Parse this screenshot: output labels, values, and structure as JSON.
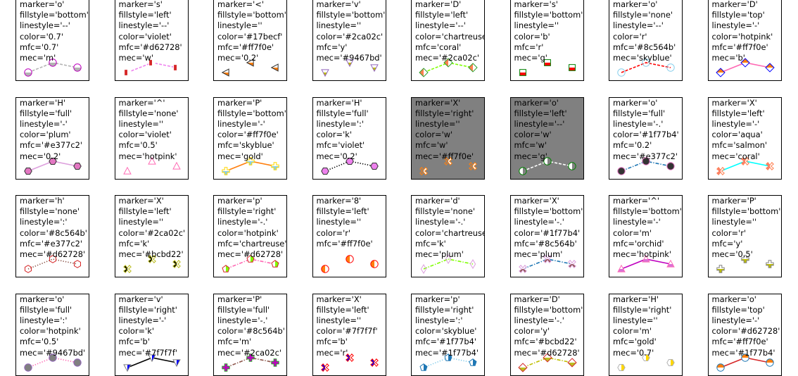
{
  "chart_data": [
    {
      "type": "line",
      "annotation": [
        "marker='o'",
        "fillstyle='bottom'",
        "linestyle='--'",
        "color='0.7'",
        "mfc='0.7'",
        "mec='m'"
      ],
      "marker": "o",
      "fillstyle": "bottom",
      "linestyle": "--",
      "color": "#b3b3b3",
      "mfc": "#b3b3b3",
      "mec": "#bf00bf",
      "bg": "#ffffff",
      "x": [
        1,
        2,
        3
      ],
      "y": [
        1,
        2,
        1.5
      ]
    },
    {
      "type": "line",
      "annotation": [
        "marker='s'",
        "fillstyle='left'",
        "linestyle='--'",
        "color='violet'",
        "mfc='#d62728'",
        "mec='w'"
      ],
      "marker": "s",
      "fillstyle": "left",
      "linestyle": "--",
      "color": "#ee82ee",
      "mfc": "#d62728",
      "mec": "#ffffff",
      "bg": "#ffffff",
      "x": [
        1,
        2,
        3
      ],
      "y": [
        1,
        2,
        1.5
      ]
    },
    {
      "type": "line",
      "annotation": [
        "marker='<'",
        "fillstyle='bottom'",
        "linestyle=''",
        "color='#17becf'",
        "mfc='#ff7f0e'",
        "mec='0.2'"
      ],
      "marker": "<",
      "fillstyle": "bottom",
      "linestyle": "",
      "color": "#17becf",
      "mfc": "#ff7f0e",
      "mec": "#333333",
      "bg": "#ffffff",
      "x": [
        1,
        2,
        3
      ],
      "y": [
        1,
        2,
        1.5
      ]
    },
    {
      "type": "line",
      "annotation": [
        "marker='v'",
        "fillstyle='bottom'",
        "linestyle=''",
        "color='#2ca02c'",
        "mfc='y'",
        "mec='#9467bd'"
      ],
      "marker": "v",
      "fillstyle": "bottom",
      "linestyle": "",
      "color": "#2ca02c",
      "mfc": "#bfbf00",
      "mec": "#9467bd",
      "bg": "#ffffff",
      "x": [
        1,
        2,
        3
      ],
      "y": [
        1,
        2,
        1.5
      ]
    },
    {
      "type": "line",
      "annotation": [
        "marker='D'",
        "fillstyle='left'",
        "linestyle='--'",
        "color='chartreuse'",
        "mfc='coral'",
        "mec='#2ca02c'"
      ],
      "marker": "D",
      "fillstyle": "left",
      "linestyle": "--",
      "color": "#7fff00",
      "mfc": "#ff7f50",
      "mec": "#2ca02c",
      "bg": "#ffffff",
      "x": [
        1,
        2,
        3
      ],
      "y": [
        1,
        2,
        1.5
      ]
    },
    {
      "type": "line",
      "annotation": [
        "marker='s'",
        "fillstyle='bottom'",
        "linestyle=''",
        "color='b'",
        "mfc='r'",
        "mec='g'"
      ],
      "marker": "s",
      "fillstyle": "bottom",
      "linestyle": "",
      "color": "#0000ff",
      "mfc": "#ff0000",
      "mec": "#008000",
      "bg": "#ffffff",
      "x": [
        1,
        2,
        3
      ],
      "y": [
        1,
        2,
        1.5
      ]
    },
    {
      "type": "line",
      "annotation": [
        "marker='o'",
        "fillstyle='none'",
        "linestyle='--'",
        "color='r'",
        "mfc='#8c564b'",
        "mec='skyblue'"
      ],
      "marker": "o",
      "fillstyle": "none",
      "linestyle": "--",
      "color": "#ff0000",
      "mfc": "#8c564b",
      "mec": "#87ceeb",
      "bg": "#ffffff",
      "x": [
        1,
        2,
        3
      ],
      "y": [
        1,
        2,
        1.5
      ]
    },
    {
      "type": "line",
      "annotation": [
        "marker='D'",
        "fillstyle='top'",
        "linestyle='-'",
        "color='hotpink'",
        "mfc='#ff7f0e'",
        "mec='b'"
      ],
      "marker": "D",
      "fillstyle": "top",
      "linestyle": "-",
      "color": "#ff69b4",
      "mfc": "#ff7f0e",
      "mec": "#0000ff",
      "bg": "#ffffff",
      "x": [
        1,
        2,
        3
      ],
      "y": [
        1,
        2,
        1.5
      ]
    },
    {
      "type": "line",
      "annotation": [
        "marker='H'",
        "fillstyle='full'",
        "linestyle='-'",
        "color='plum'",
        "mfc='#e377c2'",
        "mec='0.2'"
      ],
      "marker": "H",
      "fillstyle": "full",
      "linestyle": "-",
      "color": "#dda0dd",
      "mfc": "#e377c2",
      "mec": "#333333",
      "bg": "#ffffff",
      "x": [
        1,
        2,
        3
      ],
      "y": [
        1,
        2,
        1.5
      ]
    },
    {
      "type": "line",
      "annotation": [
        "marker='^'",
        "fillstyle='none'",
        "linestyle=''",
        "color='violet'",
        "mfc='0.5'",
        "mec='hotpink'"
      ],
      "marker": "^",
      "fillstyle": "none",
      "linestyle": "",
      "color": "#ee82ee",
      "mfc": "#808080",
      "mec": "#ff69b4",
      "bg": "#ffffff",
      "x": [
        1,
        2,
        3
      ],
      "y": [
        1,
        2,
        1.5
      ]
    },
    {
      "type": "line",
      "annotation": [
        "marker='P'",
        "fillstyle='bottom'",
        "linestyle='-'",
        "color='#ff7f0e'",
        "mfc='skyblue'",
        "mec='gold'"
      ],
      "marker": "P",
      "fillstyle": "bottom",
      "linestyle": "-",
      "color": "#ff7f0e",
      "mfc": "#87ceeb",
      "mec": "#ffd700",
      "bg": "#ffffff",
      "x": [
        1,
        2,
        3
      ],
      "y": [
        1,
        2,
        1.5
      ]
    },
    {
      "type": "line",
      "annotation": [
        "marker='H'",
        "fillstyle='full'",
        "linestyle=':'",
        "color='k'",
        "mfc='violet'",
        "mec='0.2'"
      ],
      "marker": "H",
      "fillstyle": "full",
      "linestyle": ":",
      "color": "#000000",
      "mfc": "#ee82ee",
      "mec": "#333333",
      "bg": "#ffffff",
      "x": [
        1,
        2,
        3
      ],
      "y": [
        1,
        2,
        1.5
      ]
    },
    {
      "type": "line",
      "annotation": [
        "marker='X'",
        "fillstyle='right'",
        "linestyle=''",
        "color='w'",
        "mfc='w'",
        "mec='#ff7f0e'"
      ],
      "marker": "X",
      "fillstyle": "right",
      "linestyle": "",
      "color": "#ffffff",
      "mfc": "#ffffff",
      "mec": "#ff7f0e",
      "bg": "#808080",
      "x": [
        1,
        2,
        3
      ],
      "y": [
        1,
        2,
        1.5
      ]
    },
    {
      "type": "line",
      "annotation": [
        "marker='o'",
        "fillstyle='left'",
        "linestyle='--'",
        "color='w'",
        "mfc='w'",
        "mec='g'"
      ],
      "marker": "o",
      "fillstyle": "left",
      "linestyle": "--",
      "color": "#ffffff",
      "mfc": "#ffffff",
      "mec": "#008000",
      "bg": "#808080",
      "x": [
        1,
        2,
        3
      ],
      "y": [
        1,
        2,
        1.5
      ]
    },
    {
      "type": "line",
      "annotation": [
        "marker='o'",
        "fillstyle='full'",
        "linestyle='-.'",
        "color='#1f77b4'",
        "mfc='0.2'",
        "mec='#e377c2'"
      ],
      "marker": "o",
      "fillstyle": "full",
      "linestyle": "-.",
      "color": "#1f77b4",
      "mfc": "#333333",
      "mec": "#e377c2",
      "bg": "#ffffff",
      "x": [
        1,
        2,
        3
      ],
      "y": [
        1,
        2,
        1.5
      ]
    },
    {
      "type": "line",
      "annotation": [
        "marker='X'",
        "fillstyle='left'",
        "linestyle='-'",
        "color='aqua'",
        "mfc='salmon'",
        "mec='coral'"
      ],
      "marker": "X",
      "fillstyle": "left",
      "linestyle": "-",
      "color": "#00ffff",
      "mfc": "#fa8072",
      "mec": "#ff7f50",
      "bg": "#ffffff",
      "x": [
        1,
        2,
        3
      ],
      "y": [
        1,
        2,
        1.5
      ]
    },
    {
      "type": "line",
      "annotation": [
        "marker='h'",
        "fillstyle='none'",
        "linestyle=':'",
        "color='#8c564b'",
        "mfc='#e377c2'",
        "mec='#d62728'"
      ],
      "marker": "h",
      "fillstyle": "none",
      "linestyle": ":",
      "color": "#8c564b",
      "mfc": "#e377c2",
      "mec": "#d62728",
      "bg": "#ffffff",
      "x": [
        1,
        2,
        3
      ],
      "y": [
        1,
        2,
        1.5
      ]
    },
    {
      "type": "line",
      "annotation": [
        "marker='X'",
        "fillstyle='left'",
        "linestyle=''",
        "color='#2ca02c'",
        "mfc='k'",
        "mec='#bcbd22'"
      ],
      "marker": "X",
      "fillstyle": "left",
      "linestyle": "",
      "color": "#2ca02c",
      "mfc": "#000000",
      "mec": "#bcbd22",
      "bg": "#ffffff",
      "x": [
        1,
        2,
        3
      ],
      "y": [
        1,
        2,
        1.5
      ]
    },
    {
      "type": "line",
      "annotation": [
        "marker='p'",
        "fillstyle='right'",
        "linestyle='-.'",
        "color='hotpink'",
        "mfc='chartreuse'",
        "mec='#d62728'"
      ],
      "marker": "p",
      "fillstyle": "right",
      "linestyle": "-.",
      "color": "#ff69b4",
      "mfc": "#7fff00",
      "mec": "#d62728",
      "bg": "#ffffff",
      "x": [
        1,
        2,
        3
      ],
      "y": [
        1,
        2,
        1.5
      ]
    },
    {
      "type": "line",
      "annotation": [
        "marker='8'",
        "fillstyle='left'",
        "linestyle=''",
        "color='r'",
        "mfc='#ff7f0e'"
      ],
      "marker": "8",
      "fillstyle": "left",
      "linestyle": "",
      "color": "#ff0000",
      "mfc": "#ff7f0e",
      "mec": "#ff0000",
      "bg": "#ffffff",
      "x": [
        1,
        2,
        3
      ],
      "y": [
        1,
        2,
        1.5
      ]
    },
    {
      "type": "line",
      "annotation": [
        "marker='d'",
        "fillstyle='none'",
        "linestyle='-.'",
        "color='chartreuse'",
        "mfc='k'",
        "mec='plum'"
      ],
      "marker": "d",
      "fillstyle": "none",
      "linestyle": "-.",
      "color": "#7fff00",
      "mfc": "#000000",
      "mec": "#dda0dd",
      "bg": "#ffffff",
      "x": [
        1,
        2,
        3
      ],
      "y": [
        1,
        2,
        1.5
      ]
    },
    {
      "type": "line",
      "annotation": [
        "marker='X'",
        "fillstyle='bottom'",
        "linestyle='-.'",
        "color='#1f77b4'",
        "mfc='#8c564b'",
        "mec='plum'"
      ],
      "marker": "X",
      "fillstyle": "bottom",
      "linestyle": "-.",
      "color": "#1f77b4",
      "mfc": "#8c564b",
      "mec": "#dda0dd",
      "bg": "#ffffff",
      "x": [
        1,
        2,
        3
      ],
      "y": [
        1,
        2,
        1.5
      ]
    },
    {
      "type": "line",
      "annotation": [
        "marker='^'",
        "fillstyle='bottom'",
        "linestyle='-'",
        "color='m'",
        "mfc='orchid'",
        "mec='hotpink'"
      ],
      "marker": "^",
      "fillstyle": "bottom",
      "linestyle": "-",
      "color": "#bf00bf",
      "mfc": "#da70d6",
      "mec": "#ff69b4",
      "bg": "#ffffff",
      "x": [
        1,
        2,
        3
      ],
      "y": [
        1,
        2,
        1.5
      ]
    },
    {
      "type": "line",
      "annotation": [
        "marker='P'",
        "fillstyle='bottom'",
        "linestyle=''",
        "color='r'",
        "mfc='y'",
        "mec='0.5'"
      ],
      "marker": "P",
      "fillstyle": "bottom",
      "linestyle": "",
      "color": "#ff0000",
      "mfc": "#bfbf00",
      "mec": "#808080",
      "bg": "#ffffff",
      "x": [
        1,
        2,
        3
      ],
      "y": [
        1,
        2,
        1.5
      ]
    },
    {
      "type": "line",
      "annotation": [
        "marker='o'",
        "fillstyle='full'",
        "linestyle=':'",
        "color='hotpink'",
        "mfc='0.5'",
        "mec='#9467bd'"
      ],
      "marker": "o",
      "fillstyle": "full",
      "linestyle": ":",
      "color": "#ff69b4",
      "mfc": "#808080",
      "mec": "#9467bd",
      "bg": "#ffffff",
      "x": [
        1,
        2,
        3
      ],
      "y": [
        1,
        2,
        1.5
      ]
    },
    {
      "type": "line",
      "annotation": [
        "marker='v'",
        "fillstyle='right'",
        "linestyle='-'",
        "color='k'",
        "mfc='b'",
        "mec='#7f7f7f'"
      ],
      "marker": "v",
      "fillstyle": "right",
      "linestyle": "-",
      "color": "#000000",
      "mfc": "#0000ff",
      "mec": "#7f7f7f",
      "bg": "#ffffff",
      "x": [
        1,
        2,
        3
      ],
      "y": [
        1,
        2,
        1.5
      ]
    },
    {
      "type": "line",
      "annotation": [
        "marker='P'",
        "fillstyle='full'",
        "linestyle='-.'",
        "color='#8c564b'",
        "mfc='m'",
        "mec='#2ca02c'"
      ],
      "marker": "P",
      "fillstyle": "full",
      "linestyle": "-.",
      "color": "#8c564b",
      "mfc": "#bf00bf",
      "mec": "#2ca02c",
      "bg": "#ffffff",
      "x": [
        1,
        2,
        3
      ],
      "y": [
        1,
        2,
        1.5
      ]
    },
    {
      "type": "line",
      "annotation": [
        "marker='X'",
        "fillstyle='left'",
        "linestyle=''",
        "color='#7f7f7f'",
        "mfc='b'",
        "mec='r'"
      ],
      "marker": "X",
      "fillstyle": "left",
      "linestyle": "",
      "color": "#7f7f7f",
      "mfc": "#0000ff",
      "mec": "#ff0000",
      "bg": "#ffffff",
      "x": [
        1,
        2,
        3
      ],
      "y": [
        1,
        2,
        1.5
      ]
    },
    {
      "type": "line",
      "annotation": [
        "marker='p'",
        "fillstyle='right'",
        "linestyle=':'",
        "color='skyblue'",
        "mfc='#1f77b4'",
        "mec='#1f77b4'"
      ],
      "marker": "p",
      "fillstyle": "right",
      "linestyle": ":",
      "color": "#87ceeb",
      "mfc": "#1f77b4",
      "mec": "#1f77b4",
      "bg": "#ffffff",
      "x": [
        1,
        2,
        3
      ],
      "y": [
        1,
        2,
        1.5
      ]
    },
    {
      "type": "line",
      "annotation": [
        "marker='D'",
        "fillstyle='bottom'",
        "linestyle='-.'",
        "color='y'",
        "mfc='#bcbd22'",
        "mec='#d62728'"
      ],
      "marker": "D",
      "fillstyle": "bottom",
      "linestyle": "-.",
      "color": "#bfbf00",
      "mfc": "#bcbd22",
      "mec": "#d62728",
      "bg": "#ffffff",
      "x": [
        1,
        2,
        3
      ],
      "y": [
        1,
        2,
        1.5
      ]
    },
    {
      "type": "line",
      "annotation": [
        "marker='H'",
        "fillstyle='right'",
        "linestyle=''",
        "color='m'",
        "mfc='gold'",
        "mec='0.7'"
      ],
      "marker": "H",
      "fillstyle": "right",
      "linestyle": "",
      "color": "#bf00bf",
      "mfc": "#ffd700",
      "mec": "#b3b3b3",
      "bg": "#ffffff",
      "x": [
        1,
        2,
        3
      ],
      "y": [
        1,
        2,
        1.5
      ]
    },
    {
      "type": "line",
      "annotation": [
        "marker='o'",
        "fillstyle='top'",
        "linestyle='-'",
        "color='#d62728'",
        "mfc='#ff7f0e'",
        "mec='#1f77b4'"
      ],
      "marker": "o",
      "fillstyle": "top",
      "linestyle": "-",
      "color": "#d62728",
      "mfc": "#ff7f0e",
      "mec": "#1f77b4",
      "bg": "#ffffff",
      "x": [
        1,
        2,
        3
      ],
      "y": [
        1,
        2,
        1.5
      ]
    }
  ]
}
